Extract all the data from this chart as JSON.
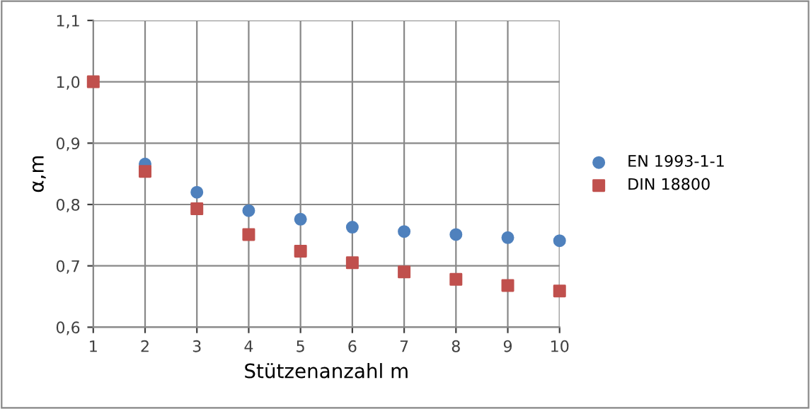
{
  "chart_data": {
    "type": "scatter",
    "xlabel": "Stützenanzahl m",
    "ylabel": "α,m",
    "x": [
      1,
      2,
      3,
      4,
      5,
      6,
      7,
      8,
      9,
      10
    ],
    "series": [
      {
        "name": "EN 1993-1-1",
        "color": "#4f81bd",
        "marker": "circle",
        "values": [
          null,
          0.866,
          0.82,
          0.79,
          0.776,
          0.763,
          0.756,
          0.751,
          0.746,
          0.741
        ]
      },
      {
        "name": "DIN 18800",
        "color": "#c0504d",
        "marker": "square",
        "values": [
          1.0,
          0.854,
          0.793,
          0.751,
          0.724,
          0.705,
          0.69,
          0.678,
          0.668,
          0.659
        ]
      }
    ],
    "xlim": [
      1,
      10
    ],
    "xticks": [
      1,
      2,
      3,
      4,
      5,
      6,
      7,
      8,
      9,
      10
    ],
    "ylim": [
      0.6,
      1.1
    ],
    "yticks": [
      {
        "value": 0.6,
        "label": "0,6"
      },
      {
        "value": 0.7,
        "label": "0,7"
      },
      {
        "value": 0.8,
        "label": "0,8"
      },
      {
        "value": 0.9,
        "label": "0,9"
      },
      {
        "value": 1.0,
        "label": "1,0"
      },
      {
        "value": 1.1,
        "label": "1,1"
      }
    ],
    "grid": true,
    "legend": "right"
  }
}
